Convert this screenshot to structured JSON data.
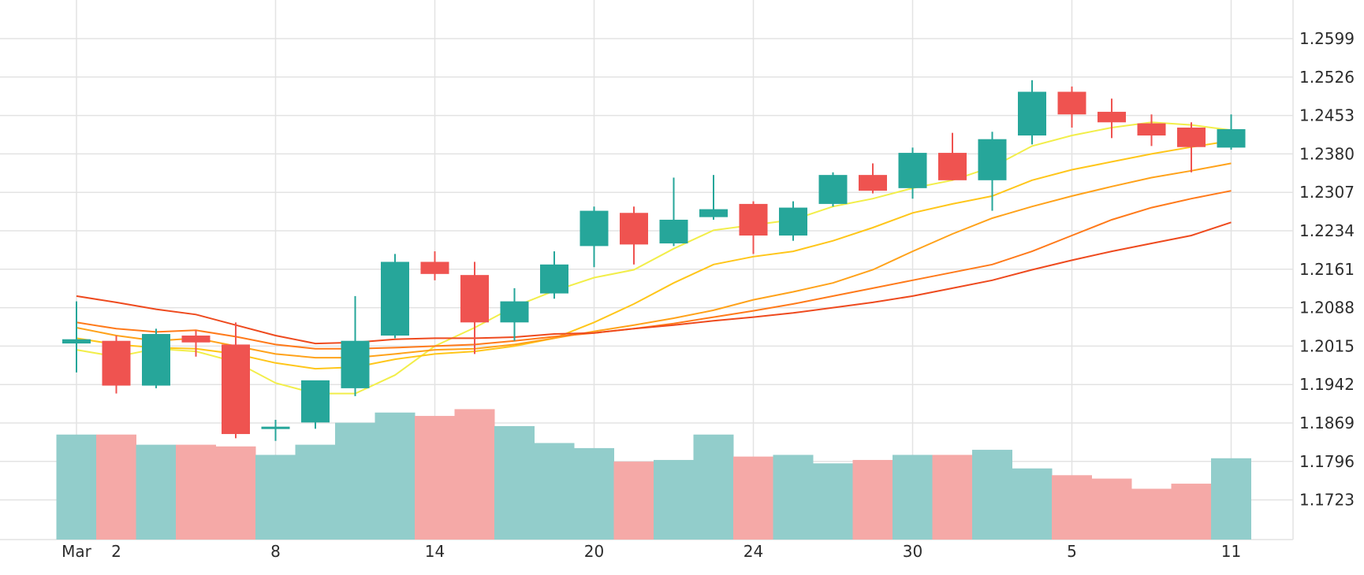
{
  "chart_data": {
    "type": "candlestick",
    "x_tick_labels": [
      {
        "label": "Mar",
        "day": 0
      },
      {
        "label": "2",
        "day": 1
      },
      {
        "label": "8",
        "day": 5
      },
      {
        "label": "14",
        "day": 9
      },
      {
        "label": "20",
        "day": 13
      },
      {
        "label": "24",
        "day": 17
      },
      {
        "label": "30",
        "day": 21
      },
      {
        "label": "5",
        "day": 25
      },
      {
        "label": "11",
        "day": 29
      }
    ],
    "y_ticks": [
      "1.2599",
      "1.2526",
      "1.2453",
      "1.2380",
      "1.2307",
      "1.2234",
      "1.2161",
      "1.2088",
      "1.2015",
      "1.1942",
      "1.1869",
      "1.1796",
      "1.1723"
    ],
    "ylim": [
      1.166,
      1.267
    ],
    "grid": true,
    "colors": {
      "up": "#26a69a",
      "down": "#ef5350",
      "volume_up": "#92cdcb",
      "volume_down": "#f5a9a7"
    },
    "candles": [
      {
        "day": 0,
        "open": 1.202,
        "high": 1.21,
        "low": 1.1965,
        "close": 1.2028
      },
      {
        "day": 1,
        "open": 1.2025,
        "high": 1.2035,
        "low": 1.1925,
        "close": 1.194
      },
      {
        "day": 2,
        "open": 1.194,
        "high": 1.2048,
        "low": 1.1935,
        "close": 1.2038
      },
      {
        "day": 3,
        "open": 1.2035,
        "high": 1.2045,
        "low": 1.1995,
        "close": 1.2022
      },
      {
        "day": 4,
        "open": 1.2018,
        "high": 1.206,
        "low": 1.184,
        "close": 1.1848
      },
      {
        "day": 5,
        "open": 1.186,
        "high": 1.1875,
        "low": 1.1835,
        "close": 1.1862
      },
      {
        "day": 6,
        "open": 1.187,
        "high": 1.194,
        "low": 1.1858,
        "close": 1.195
      },
      {
        "day": 7,
        "open": 1.1935,
        "high": 1.211,
        "low": 1.192,
        "close": 1.2025
      },
      {
        "day": 8,
        "open": 1.2035,
        "high": 1.219,
        "low": 1.203,
        "close": 1.2175
      },
      {
        "day": 9,
        "open": 1.2175,
        "high": 1.2195,
        "low": 1.214,
        "close": 1.2152
      },
      {
        "day": 10,
        "open": 1.215,
        "high": 1.2175,
        "low": 1.2,
        "close": 1.206
      },
      {
        "day": 11,
        "open": 1.206,
        "high": 1.2125,
        "low": 1.2025,
        "close": 1.21
      },
      {
        "day": 12,
        "open": 1.2115,
        "high": 1.2195,
        "low": 1.2105,
        "close": 1.217
      },
      {
        "day": 13,
        "open": 1.2205,
        "high": 1.228,
        "low": 1.2165,
        "close": 1.2272
      },
      {
        "day": 14,
        "open": 1.2268,
        "high": 1.228,
        "low": 1.217,
        "close": 1.2208
      },
      {
        "day": 15,
        "open": 1.221,
        "high": 1.2335,
        "low": 1.2205,
        "close": 1.2255
      },
      {
        "day": 16,
        "open": 1.226,
        "high": 1.234,
        "low": 1.2255,
        "close": 1.2275
      },
      {
        "day": 17,
        "open": 1.2285,
        "high": 1.229,
        "low": 1.219,
        "close": 1.2225
      },
      {
        "day": 18,
        "open": 1.2225,
        "high": 1.229,
        "low": 1.2215,
        "close": 1.2278
      },
      {
        "day": 19,
        "open": 1.2285,
        "high": 1.2345,
        "low": 1.228,
        "close": 1.234
      },
      {
        "day": 20,
        "open": 1.234,
        "high": 1.2362,
        "low": 1.2305,
        "close": 1.231
      },
      {
        "day": 21,
        "open": 1.2315,
        "high": 1.2392,
        "low": 1.2295,
        "close": 1.2382
      },
      {
        "day": 22,
        "open": 1.2382,
        "high": 1.242,
        "low": 1.233,
        "close": 1.233
      },
      {
        "day": 23,
        "open": 1.233,
        "high": 1.2422,
        "low": 1.2272,
        "close": 1.2408
      },
      {
        "day": 24,
        "open": 1.2415,
        "high": 1.252,
        "low": 1.2398,
        "close": 1.2498
      },
      {
        "day": 25,
        "open": 1.2498,
        "high": 1.2508,
        "low": 1.243,
        "close": 1.2455
      },
      {
        "day": 26,
        "open": 1.246,
        "high": 1.2485,
        "low": 1.241,
        "close": 1.244
      },
      {
        "day": 27,
        "open": 1.2438,
        "high": 1.2455,
        "low": 1.2395,
        "close": 1.2415
      },
      {
        "day": 28,
        "open": 1.243,
        "high": 1.244,
        "low": 1.2345,
        "close": 1.2393
      },
      {
        "day": 29,
        "open": 1.2392,
        "high": 1.2455,
        "low": 1.2388,
        "close": 1.2427
      }
    ],
    "volume_levels": [
      {
        "day": 0,
        "level": 0.62
      },
      {
        "day": 1,
        "level": 0.62
      },
      {
        "day": 2,
        "level": 0.56
      },
      {
        "day": 3,
        "level": 0.56
      },
      {
        "day": 4,
        "level": 0.55
      },
      {
        "day": 5,
        "level": 0.5
      },
      {
        "day": 6,
        "level": 0.56
      },
      {
        "day": 7,
        "level": 0.69
      },
      {
        "day": 8,
        "level": 0.75
      },
      {
        "day": 9,
        "level": 0.73
      },
      {
        "day": 10,
        "level": 0.77
      },
      {
        "day": 11,
        "level": 0.67
      },
      {
        "day": 12,
        "level": 0.57
      },
      {
        "day": 13,
        "level": 0.54
      },
      {
        "day": 14,
        "level": 0.46
      },
      {
        "day": 15,
        "level": 0.47
      },
      {
        "day": 16,
        "level": 0.62
      },
      {
        "day": 17,
        "level": 0.49
      },
      {
        "day": 18,
        "level": 0.5
      },
      {
        "day": 19,
        "level": 0.45
      },
      {
        "day": 20,
        "level": 0.47
      },
      {
        "day": 21,
        "level": 0.5
      },
      {
        "day": 22,
        "level": 0.5
      },
      {
        "day": 23,
        "level": 0.53
      },
      {
        "day": 24,
        "level": 0.42
      },
      {
        "day": 25,
        "level": 0.38
      },
      {
        "day": 26,
        "level": 0.36
      },
      {
        "day": 27,
        "level": 0.3
      },
      {
        "day": 28,
        "level": 0.33
      },
      {
        "day": 29,
        "level": 0.48
      }
    ],
    "moving_averages": [
      {
        "color": "#f2ee4a",
        "values": [
          [
            0,
            1.2008
          ],
          [
            1,
            1.1995
          ],
          [
            2,
            1.201
          ],
          [
            3,
            1.2005
          ],
          [
            4,
            1.1985
          ],
          [
            5,
            1.1945
          ],
          [
            6,
            1.1925
          ],
          [
            7,
            1.1925
          ],
          [
            8,
            1.196
          ],
          [
            9,
            1.2015
          ],
          [
            10,
            1.205
          ],
          [
            11,
            1.209
          ],
          [
            12,
            1.212
          ],
          [
            13,
            1.2145
          ],
          [
            14,
            1.216
          ],
          [
            15,
            1.22
          ],
          [
            16,
            1.2235
          ],
          [
            17,
            1.2245
          ],
          [
            18,
            1.2255
          ],
          [
            19,
            1.228
          ],
          [
            20,
            1.2295
          ],
          [
            21,
            1.2315
          ],
          [
            22,
            1.233
          ],
          [
            23,
            1.2355
          ],
          [
            24,
            1.2395
          ],
          [
            25,
            1.2415
          ],
          [
            26,
            1.243
          ],
          [
            27,
            1.244
          ],
          [
            28,
            1.2435
          ],
          [
            29,
            1.2425
          ]
        ]
      },
      {
        "color": "#ffc61a",
        "values": [
          [
            0,
            1.203
          ],
          [
            1,
            1.2018
          ],
          [
            2,
            1.2012
          ],
          [
            3,
            1.201
          ],
          [
            4,
            1.2
          ],
          [
            5,
            1.1983
          ],
          [
            6,
            1.1972
          ],
          [
            7,
            1.1975
          ],
          [
            8,
            1.199
          ],
          [
            9,
            1.2
          ],
          [
            10,
            1.2005
          ],
          [
            11,
            1.2015
          ],
          [
            12,
            1.203
          ],
          [
            13,
            1.206
          ],
          [
            14,
            1.2095
          ],
          [
            15,
            1.2135
          ],
          [
            16,
            1.217
          ],
          [
            17,
            1.2185
          ],
          [
            18,
            1.2195
          ],
          [
            19,
            1.2215
          ],
          [
            20,
            1.224
          ],
          [
            21,
            1.2268
          ],
          [
            22,
            1.2285
          ],
          [
            23,
            1.23
          ],
          [
            24,
            1.233
          ],
          [
            25,
            1.235
          ],
          [
            26,
            1.2365
          ],
          [
            27,
            1.238
          ],
          [
            28,
            1.2393
          ],
          [
            29,
            1.2405
          ]
        ]
      },
      {
        "color": "#ffa21a",
        "values": [
          [
            0,
            1.205
          ],
          [
            1,
            1.2035
          ],
          [
            2,
            1.2025
          ],
          [
            3,
            1.203
          ],
          [
            4,
            1.2015
          ],
          [
            5,
            1.2
          ],
          [
            6,
            1.1993
          ],
          [
            7,
            1.1993
          ],
          [
            8,
            1.2
          ],
          [
            9,
            1.2008
          ],
          [
            10,
            1.201
          ],
          [
            11,
            1.2018
          ],
          [
            12,
            1.203
          ],
          [
            13,
            1.2043
          ],
          [
            14,
            1.2055
          ],
          [
            15,
            1.2068
          ],
          [
            16,
            1.2083
          ],
          [
            17,
            1.2103
          ],
          [
            18,
            1.2118
          ],
          [
            19,
            1.2135
          ],
          [
            20,
            1.216
          ],
          [
            21,
            1.2195
          ],
          [
            22,
            1.2228
          ],
          [
            23,
            1.2258
          ],
          [
            24,
            1.228
          ],
          [
            25,
            1.23
          ],
          [
            26,
            1.2318
          ],
          [
            27,
            1.2335
          ],
          [
            28,
            1.2348
          ],
          [
            29,
            1.2362
          ]
        ]
      },
      {
        "color": "#ff7a1a",
        "values": [
          [
            0,
            1.206
          ],
          [
            1,
            1.2048
          ],
          [
            2,
            1.2042
          ],
          [
            3,
            1.2045
          ],
          [
            4,
            1.2033
          ],
          [
            5,
            1.2018
          ],
          [
            6,
            1.201
          ],
          [
            7,
            1.201
          ],
          [
            8,
            1.2012
          ],
          [
            9,
            1.2015
          ],
          [
            10,
            1.2018
          ],
          [
            11,
            1.2025
          ],
          [
            12,
            1.2033
          ],
          [
            13,
            1.204
          ],
          [
            14,
            1.2048
          ],
          [
            15,
            1.2058
          ],
          [
            16,
            1.207
          ],
          [
            17,
            1.2082
          ],
          [
            18,
            1.2095
          ],
          [
            19,
            1.211
          ],
          [
            20,
            1.2125
          ],
          [
            21,
            1.214
          ],
          [
            22,
            1.2155
          ],
          [
            23,
            1.217
          ],
          [
            24,
            1.2195
          ],
          [
            25,
            1.2225
          ],
          [
            26,
            1.2255
          ],
          [
            27,
            1.2278
          ],
          [
            28,
            1.2295
          ],
          [
            29,
            1.231
          ]
        ]
      },
      {
        "color": "#ee4a1e",
        "values": [
          [
            0,
            1.211
          ],
          [
            1,
            1.2098
          ],
          [
            2,
            1.2085
          ],
          [
            3,
            1.2075
          ],
          [
            4,
            1.2055
          ],
          [
            5,
            1.2035
          ],
          [
            6,
            1.202
          ],
          [
            7,
            1.2022
          ],
          [
            8,
            1.2028
          ],
          [
            9,
            1.203
          ],
          [
            10,
            1.203
          ],
          [
            11,
            1.2032
          ],
          [
            12,
            1.2038
          ],
          [
            13,
            1.204
          ],
          [
            14,
            1.2048
          ],
          [
            15,
            1.2055
          ],
          [
            16,
            1.2063
          ],
          [
            17,
            1.207
          ],
          [
            18,
            1.2078
          ],
          [
            19,
            1.2088
          ],
          [
            20,
            1.2098
          ],
          [
            21,
            1.211
          ],
          [
            22,
            1.2125
          ],
          [
            23,
            1.214
          ],
          [
            24,
            1.216
          ],
          [
            25,
            1.2178
          ],
          [
            26,
            1.2195
          ],
          [
            27,
            1.221
          ],
          [
            28,
            1.2225
          ],
          [
            29,
            1.225
          ]
        ]
      }
    ]
  }
}
